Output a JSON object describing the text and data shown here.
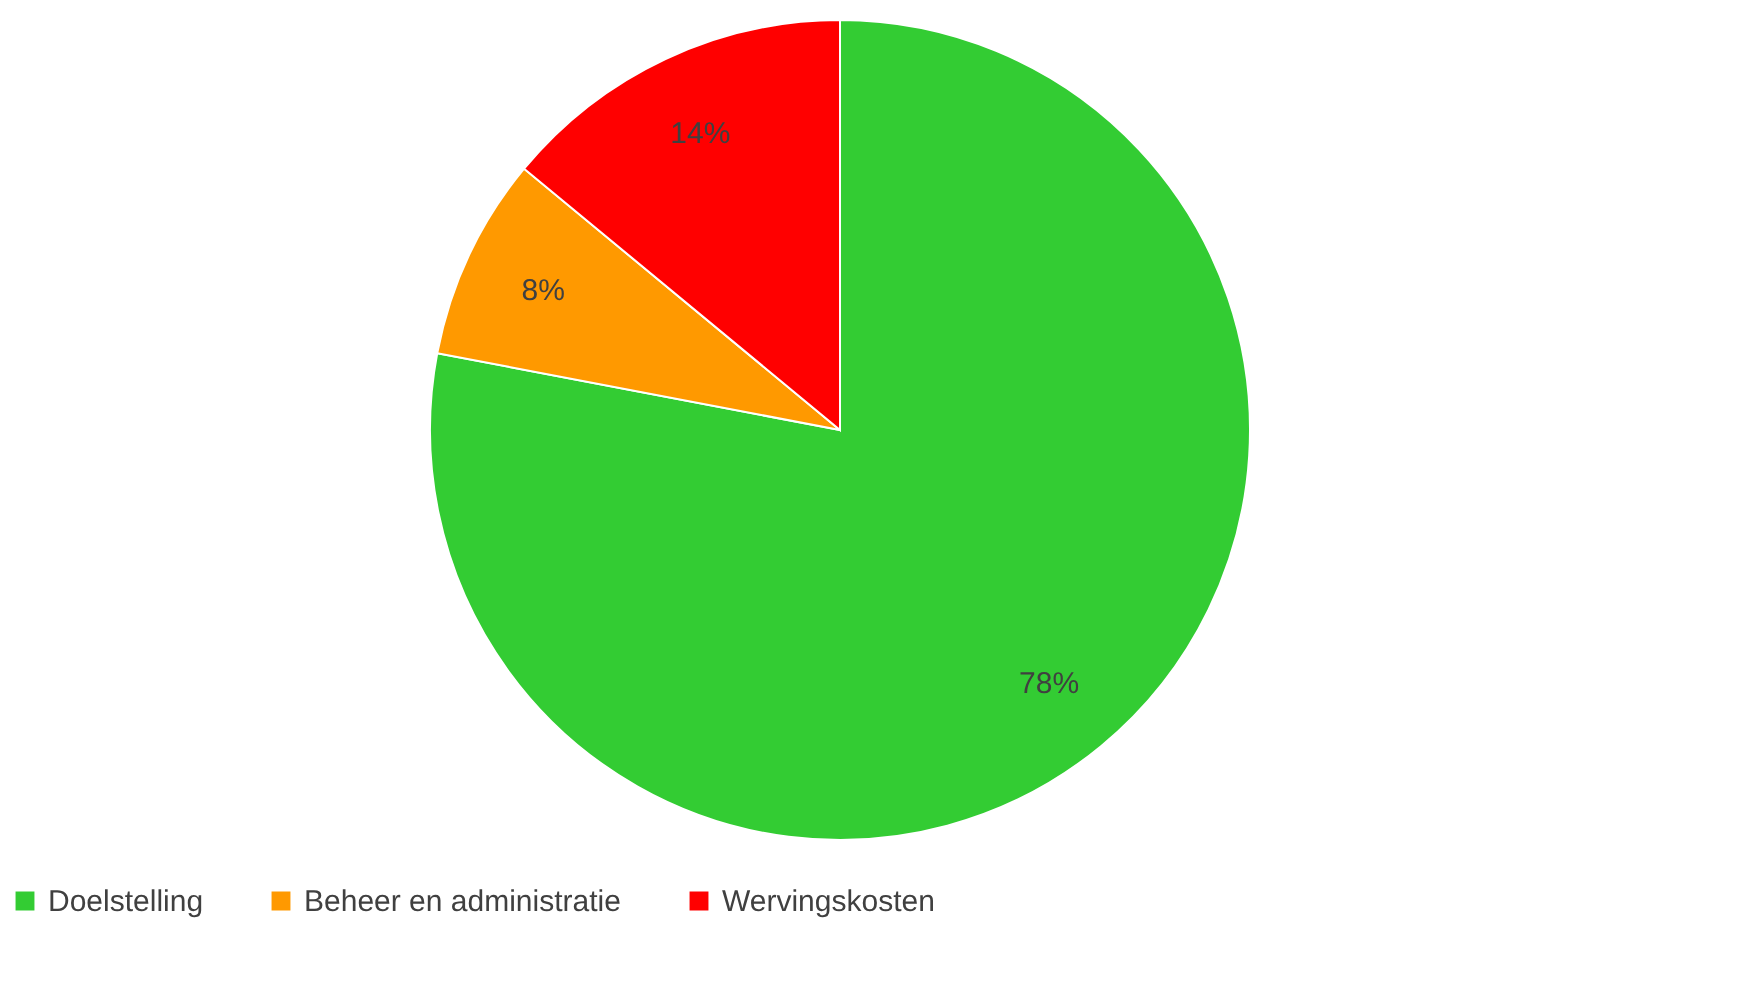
{
  "chart_data": {
    "type": "pie",
    "categories": [
      "Doelstelling",
      "Beheer en administratie",
      "Wervingskosten"
    ],
    "values": [
      78,
      8,
      14
    ],
    "colors": [
      "#33cc33",
      "#ff9900",
      "#ff0000"
    ],
    "value_labels": [
      "78%",
      "8%",
      "14%"
    ],
    "legend": "bottom"
  }
}
